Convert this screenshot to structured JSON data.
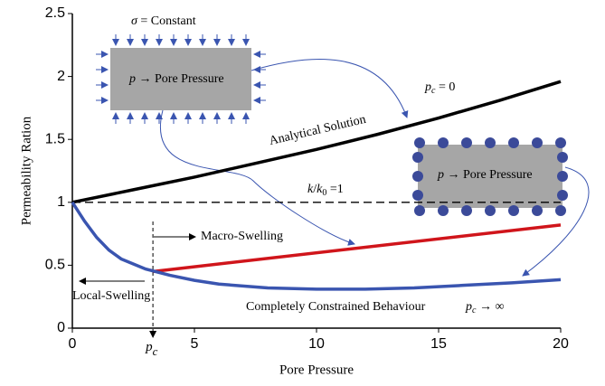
{
  "chart_data": {
    "type": "line",
    "xlabel": "Pore Pressure",
    "ylabel": "Permeability Ration",
    "xlim": [
      0,
      20
    ],
    "ylim": [
      0,
      2.5
    ],
    "xticks": [
      0,
      5,
      10,
      15,
      20
    ],
    "yticks": [
      0,
      0.5,
      1,
      1.5,
      2,
      2.5
    ],
    "series": [
      {
        "name": "Analytical Solution",
        "color": "#000000",
        "x": [
          0,
          2.5,
          5,
          7.5,
          10,
          12.5,
          15,
          17.5,
          20
        ],
        "values": [
          1,
          1.1,
          1.2,
          1.31,
          1.42,
          1.54,
          1.67,
          1.81,
          1.96
        ]
      },
      {
        "name": "Macro-Swelling",
        "color": "#d0151b",
        "x": [
          3.3,
          20
        ],
        "values": [
          0.45,
          0.82
        ]
      },
      {
        "name": "Completely Constrained Behaviour",
        "color": "#3a55b0",
        "x": [
          0,
          0.5,
          1,
          1.5,
          2,
          3,
          4,
          5,
          6,
          8,
          10,
          12,
          14,
          16,
          18,
          20
        ],
        "values": [
          1,
          0.85,
          0.72,
          0.62,
          0.55,
          0.47,
          0.42,
          0.38,
          0.35,
          0.32,
          0.31,
          0.31,
          0.32,
          0.34,
          0.36,
          0.385
        ]
      }
    ],
    "reference": {
      "value": 1,
      "label": [
        "k",
        "/",
        "k",
        "0",
        " =1"
      ]
    },
    "pc_marker": {
      "value": 3.3,
      "label": [
        "p",
        "c"
      ]
    },
    "annotations": {
      "sigma": [
        "σ",
        " = Constant"
      ],
      "box": [
        "p",
        " → Pore Pressure"
      ],
      "box2": [
        "p",
        " → Pore Pressure"
      ],
      "pc_zero": [
        "p",
        "c",
        " = 0"
      ],
      "pc_inf": [
        "p",
        "c",
        " → ∞"
      ],
      "local": "Local-Swelling",
      "macro": "Macro-Swelling"
    }
  }
}
